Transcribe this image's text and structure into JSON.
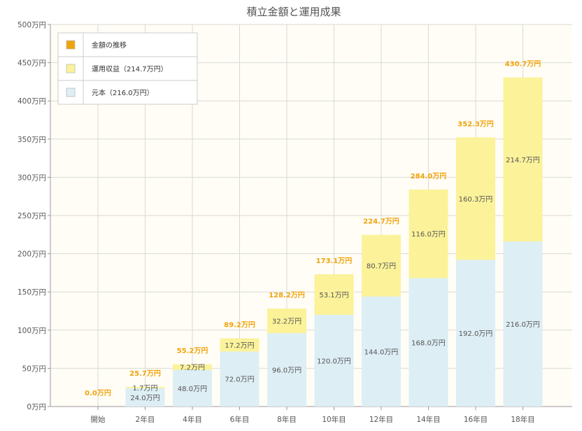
{
  "chart_data": {
    "type": "bar",
    "stacked": true,
    "title": "積立金額と運用成果",
    "categories": [
      "開始",
      "2年目",
      "4年目",
      "6年目",
      "8年目",
      "10年目",
      "12年目",
      "14年目",
      "16年目",
      "18年目"
    ],
    "series": [
      {
        "name": "元本（216.0万円）",
        "color": "#ddeef5",
        "values": [
          0.0,
          24.0,
          48.0,
          72.0,
          96.0,
          120.0,
          144.0,
          168.0,
          192.0,
          216.0
        ],
        "labels": [
          "",
          "24.0万円",
          "48.0万円",
          "72.0万円",
          "96.0万円",
          "120.0万円",
          "144.0万円",
          "168.0万円",
          "192.0万円",
          "216.0万円"
        ]
      },
      {
        "name": "運用収益（214.7万円）",
        "color": "#fbf29a",
        "values": [
          0.0,
          1.7,
          7.2,
          17.2,
          32.2,
          53.1,
          80.7,
          116.0,
          160.3,
          214.7
        ],
        "labels": [
          "",
          "1.7万円",
          "7.2万円",
          "17.2万円",
          "32.2万円",
          "53.1万円",
          "80.7万円",
          "116.0万円",
          "160.3万円",
          "214.7万円"
        ]
      }
    ],
    "totals": {
      "name": "金額の推移",
      "color": "#f0a30a",
      "values": [
        0.0,
        25.7,
        55.2,
        89.2,
        128.2,
        173.1,
        224.7,
        284.0,
        352.3,
        430.7
      ],
      "labels": [
        "0.0万円",
        "25.7万円",
        "55.2万円",
        "89.2万円",
        "128.2万円",
        "173.1万円",
        "224.7万円",
        "284.0万円",
        "352.3万円",
        "430.7万円"
      ]
    },
    "ylim": [
      0,
      500
    ],
    "yticks": [
      {
        "value": 0,
        "label": "0万円"
      },
      {
        "value": 50,
        "label": "50万円"
      },
      {
        "value": 100,
        "label": "100万円"
      },
      {
        "value": 150,
        "label": "150万円"
      },
      {
        "value": 200,
        "label": "200万円"
      },
      {
        "value": 250,
        "label": "250万円"
      },
      {
        "value": 300,
        "label": "300万円"
      },
      {
        "value": 350,
        "label": "350万円"
      },
      {
        "value": 400,
        "label": "400万円"
      },
      {
        "value": 450,
        "label": "450万円"
      },
      {
        "value": 500,
        "label": "500万円"
      }
    ],
    "grid": true,
    "legend_position": "top-left",
    "legend": [
      {
        "label": "金額の推移",
        "color": "#f0a30a"
      },
      {
        "label": "運用収益（214.7万円）",
        "color": "#fbf29a"
      },
      {
        "label": "元本（216.0万円）",
        "color": "#ddeef5"
      }
    ],
    "plot_background": "#fffdf5"
  }
}
